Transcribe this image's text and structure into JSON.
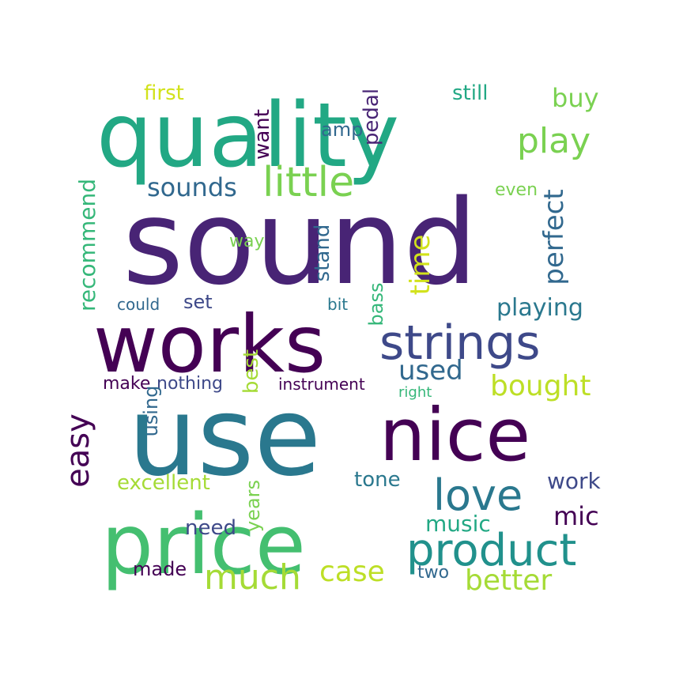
{
  "word_cloud": {
    "words": [
      {
        "text": "sound",
        "color": "#482475"
      },
      {
        "text": "use",
        "color": "#2a788e"
      },
      {
        "text": "quality",
        "color": "#22a884"
      },
      {
        "text": "works",
        "color": "#440154"
      },
      {
        "text": "price",
        "color": "#44bf70"
      },
      {
        "text": "nice",
        "color": "#440154"
      },
      {
        "text": "strings",
        "color": "#3e4989"
      },
      {
        "text": "product",
        "color": "#21918c"
      },
      {
        "text": "love",
        "color": "#2a788e"
      },
      {
        "text": "little",
        "color": "#7ad151"
      },
      {
        "text": "play",
        "color": "#7ad151"
      },
      {
        "text": "much",
        "color": "#a5db36"
      },
      {
        "text": "sounds",
        "color": "#31688e"
      },
      {
        "text": "bought",
        "color": "#bddf26"
      },
      {
        "text": "easy",
        "color": "#440154"
      },
      {
        "text": "case",
        "color": "#bddf26"
      },
      {
        "text": "better",
        "color": "#a5db36"
      },
      {
        "text": "used",
        "color": "#31688e"
      },
      {
        "text": "perfect",
        "color": "#31688e"
      },
      {
        "text": "playing",
        "color": "#2a788e"
      },
      {
        "text": "buy",
        "color": "#7ad151"
      },
      {
        "text": "time",
        "color": "#d2e21b"
      },
      {
        "text": "mic",
        "color": "#440154"
      },
      {
        "text": "work",
        "color": "#3e4989"
      },
      {
        "text": "music",
        "color": "#22a884"
      },
      {
        "text": "tone",
        "color": "#2a788e"
      },
      {
        "text": "need",
        "color": "#3e4989"
      },
      {
        "text": "recommend",
        "color": "#35b779"
      },
      {
        "text": "excellent",
        "color": "#a5db36"
      },
      {
        "text": "first",
        "color": "#d2e21b"
      },
      {
        "text": "still",
        "color": "#22a884"
      },
      {
        "text": "want",
        "color": "#440154"
      },
      {
        "text": "amp",
        "color": "#31688e"
      },
      {
        "text": "pedal",
        "color": "#482475"
      },
      {
        "text": "even",
        "color": "#7ad151"
      },
      {
        "text": "stand",
        "color": "#31688e"
      },
      {
        "text": "way",
        "color": "#7ad151"
      },
      {
        "text": "set",
        "color": "#3e4989"
      },
      {
        "text": "could",
        "color": "#31688e"
      },
      {
        "text": "bit",
        "color": "#2a788e"
      },
      {
        "text": "bass",
        "color": "#35b779"
      },
      {
        "text": "best",
        "color": "#a5db36"
      },
      {
        "text": "make",
        "color": "#440154"
      },
      {
        "text": "nothing",
        "color": "#3e4989"
      },
      {
        "text": "instrument",
        "color": "#440154"
      },
      {
        "text": "right",
        "color": "#35b779"
      },
      {
        "text": "using",
        "color": "#31688e"
      },
      {
        "text": "years",
        "color": "#7ad151"
      },
      {
        "text": "made",
        "color": "#440154"
      },
      {
        "text": "two",
        "color": "#31688e"
      }
    ]
  }
}
